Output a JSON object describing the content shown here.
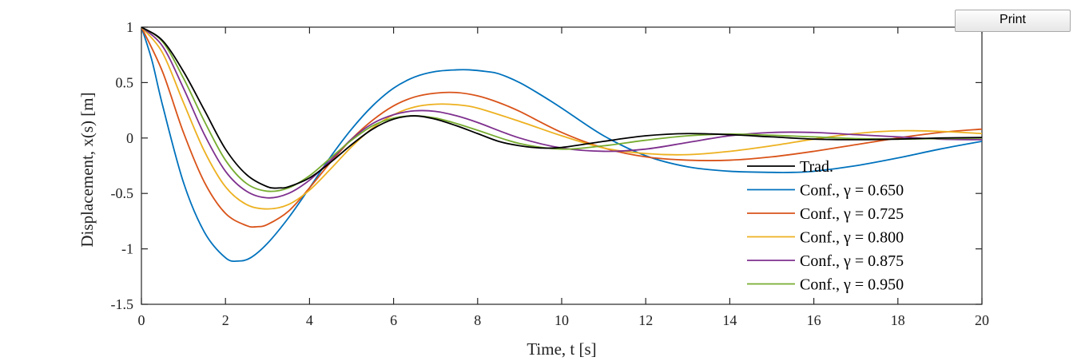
{
  "print_button": {
    "label": "Print"
  },
  "chart_data": {
    "type": "line",
    "xlabel": "Time, t [s]",
    "ylabel": "Displacement, x(s) [m]",
    "xlim": [
      0,
      20
    ],
    "ylim": [
      -1.5,
      1
    ],
    "xticks": [
      "0",
      "2",
      "4",
      "6",
      "8",
      "10",
      "12",
      "14",
      "16",
      "18",
      "20"
    ],
    "yticks": [
      "-1.5",
      "-1",
      "-0.5",
      "0",
      "0.5",
      "1"
    ],
    "grid": false,
    "legend_position": "inside-right",
    "series": [
      {
        "name": "Trad.",
        "color": "#000000",
        "x": [
          0,
          0.5,
          1,
          1.5,
          2,
          2.5,
          3,
          3.3,
          3.5,
          4,
          4.5,
          5,
          5.5,
          6,
          6.5,
          7,
          7.5,
          8,
          8.5,
          9,
          9.5,
          10,
          11,
          12,
          13,
          14,
          15,
          16,
          17,
          18,
          19,
          20
        ],
        "y": [
          1,
          0.88,
          0.6,
          0.25,
          -0.1,
          -0.33,
          -0.44,
          -0.45,
          -0.44,
          -0.36,
          -0.22,
          -0.06,
          0.08,
          0.17,
          0.2,
          0.17,
          0.11,
          0.04,
          -0.03,
          -0.07,
          -0.09,
          -0.085,
          -0.03,
          0.02,
          0.04,
          0.03,
          0.01,
          -0.01,
          -0.015,
          -0.01,
          0,
          0.005
        ]
      },
      {
        "name": "Conf., γ = 0.650",
        "color": "#0072bd",
        "x": [
          0,
          0.25,
          0.5,
          1,
          1.5,
          2,
          2.3,
          2.6,
          3,
          3.5,
          4,
          4.5,
          5,
          5.5,
          6,
          6.5,
          7,
          7.5,
          7.8,
          8.2,
          8.5,
          9,
          9.5,
          10,
          11,
          12,
          13,
          14,
          15,
          15.5,
          16,
          17,
          18,
          19,
          20
        ],
        "y": [
          1,
          0.7,
          0.3,
          -0.4,
          -0.85,
          -1.08,
          -1.11,
          -1.08,
          -0.95,
          -0.72,
          -0.45,
          -0.17,
          0.08,
          0.29,
          0.45,
          0.55,
          0.6,
          0.615,
          0.615,
          0.6,
          0.58,
          0.5,
          0.39,
          0.27,
          0.02,
          -0.16,
          -0.26,
          -0.3,
          -0.31,
          -0.31,
          -0.3,
          -0.25,
          -0.18,
          -0.1,
          -0.03
        ]
      },
      {
        "name": "Conf., γ = 0.725",
        "color": "#d95319",
        "x": [
          0,
          0.5,
          1,
          1.5,
          2,
          2.5,
          2.75,
          3,
          3.5,
          4,
          4.5,
          5,
          5.5,
          6,
          6.5,
          7,
          7.5,
          8,
          8.5,
          9,
          10,
          11,
          12,
          13,
          14,
          15,
          16,
          17,
          18,
          19,
          20
        ],
        "y": [
          1,
          0.6,
          0.05,
          -0.4,
          -0.68,
          -0.79,
          -0.8,
          -0.78,
          -0.66,
          -0.45,
          -0.22,
          -0.01,
          0.16,
          0.29,
          0.37,
          0.405,
          0.41,
          0.38,
          0.32,
          0.24,
          0.05,
          -0.09,
          -0.17,
          -0.2,
          -0.2,
          -0.17,
          -0.12,
          -0.06,
          0,
          0.05,
          0.08
        ]
      },
      {
        "name": "Conf., γ = 0.800",
        "color": "#edb120",
        "x": [
          0,
          0.5,
          1,
          1.5,
          2,
          2.5,
          3,
          3.5,
          4,
          4.5,
          5,
          5.5,
          6,
          6.5,
          7,
          7.5,
          8,
          9,
          10,
          11,
          12,
          13,
          14,
          15,
          16,
          17,
          18,
          19,
          20
        ],
        "y": [
          1,
          0.77,
          0.32,
          -0.12,
          -0.44,
          -0.6,
          -0.64,
          -0.6,
          -0.47,
          -0.28,
          -0.08,
          0.09,
          0.21,
          0.28,
          0.305,
          0.3,
          0.27,
          0.15,
          0.02,
          -0.09,
          -0.14,
          -0.15,
          -0.12,
          -0.07,
          -0.01,
          0.04,
          0.065,
          0.06,
          0.04
        ]
      },
      {
        "name": "Conf., γ = 0.875",
        "color": "#7e2f8e",
        "x": [
          0,
          0.5,
          1,
          1.5,
          2,
          2.5,
          3,
          3.5,
          4,
          4.5,
          5,
          5.5,
          6,
          6.5,
          7,
          7.5,
          8,
          9,
          10,
          11,
          12,
          13,
          14,
          15,
          16,
          17,
          18,
          19,
          20
        ],
        "y": [
          1,
          0.83,
          0.45,
          0.03,
          -0.3,
          -0.48,
          -0.54,
          -0.5,
          -0.38,
          -0.2,
          -0.01,
          0.13,
          0.21,
          0.245,
          0.24,
          0.2,
          0.14,
          0,
          -0.09,
          -0.12,
          -0.1,
          -0.04,
          0.02,
          0.05,
          0.05,
          0.03,
          0.01,
          -0.01,
          -0.015
        ]
      },
      {
        "name": "Conf., γ = 0.950",
        "color": "#77ac30",
        "x": [
          0,
          0.5,
          1,
          1.5,
          2,
          2.5,
          3,
          3.5,
          4,
          4.5,
          5,
          5.5,
          6,
          6.5,
          7,
          7.5,
          8,
          9,
          10,
          11,
          12,
          13,
          14,
          15,
          16,
          17,
          18,
          19,
          20
        ],
        "y": [
          1,
          0.87,
          0.54,
          0.15,
          -0.2,
          -0.41,
          -0.48,
          -0.45,
          -0.34,
          -0.18,
          -0.02,
          0.11,
          0.18,
          0.2,
          0.18,
          0.13,
          0.07,
          -0.05,
          -0.1,
          -0.07,
          -0.02,
          0.02,
          0.035,
          0.025,
          0.01,
          -0.005,
          -0.01,
          -0.005,
          0
        ]
      }
    ]
  }
}
